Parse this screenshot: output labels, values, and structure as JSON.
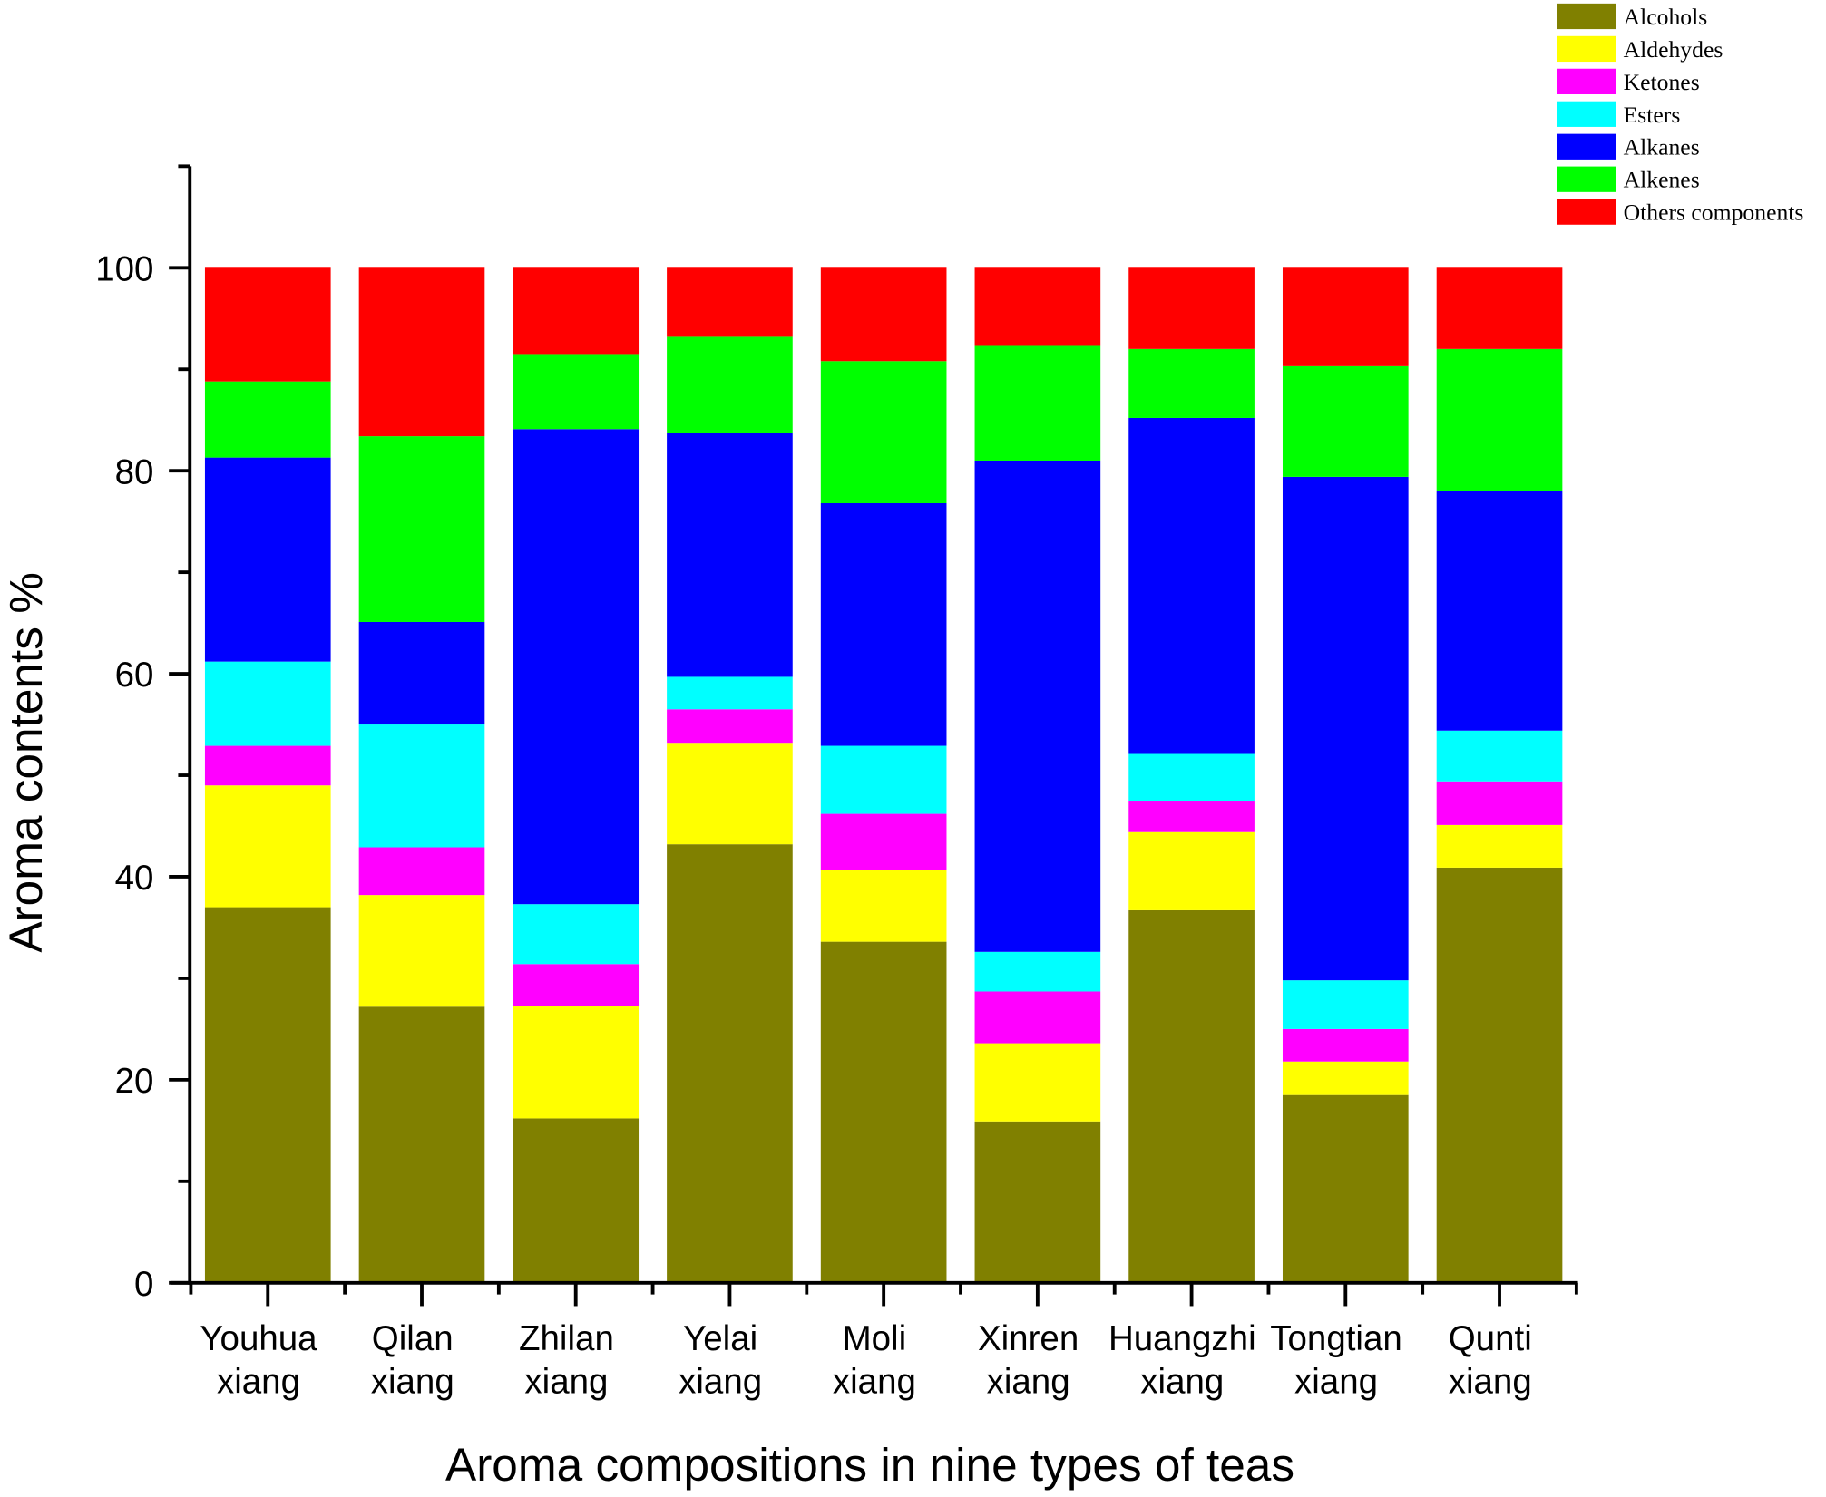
{
  "chart_data": {
    "type": "bar",
    "stacked": true,
    "title": "",
    "xlabel": "Aroma compositions in nine types of teas",
    "ylabel": "Aroma contents %",
    "ylim": [
      0,
      110
    ],
    "yticks": [
      0,
      20,
      40,
      60,
      80,
      100
    ],
    "grid": false,
    "legend_position": "top-right",
    "categories": [
      [
        "Youhua",
        "xiang"
      ],
      [
        "Qilan",
        "xiang"
      ],
      [
        "Zhilan",
        "xiang"
      ],
      [
        "Yelai",
        "xiang"
      ],
      [
        "Moli",
        "xiang"
      ],
      [
        "Xinren",
        "xiang"
      ],
      [
        "Huangzhi",
        "xiang"
      ],
      [
        "Tongtian",
        "xiang"
      ],
      [
        "Qunti",
        "xiang"
      ]
    ],
    "series": [
      {
        "name": "Alcohols",
        "color": "#808000",
        "values": [
          37.0,
          27.2,
          16.2,
          43.2,
          33.6,
          15.9,
          36.7,
          18.5,
          40.9
        ]
      },
      {
        "name": "Aldehydes",
        "color": "#ffff00",
        "values": [
          12.0,
          11.0,
          11.1,
          10.0,
          7.1,
          7.7,
          7.7,
          3.3,
          4.2
        ]
      },
      {
        "name": "Ketones",
        "color": "#ff00ff",
        "values": [
          3.9,
          4.7,
          4.1,
          3.3,
          5.5,
          5.1,
          3.1,
          3.2,
          4.3
        ]
      },
      {
        "name": "Esters",
        "color": "#00ffff",
        "values": [
          8.3,
          12.1,
          5.9,
          3.2,
          6.7,
          3.9,
          4.6,
          4.8,
          5.0
        ]
      },
      {
        "name": "Alkanes",
        "color": "#0000ff",
        "values": [
          20.1,
          10.1,
          46.8,
          24.0,
          23.9,
          48.4,
          33.1,
          49.6,
          23.6
        ]
      },
      {
        "name": "Alkenes",
        "color": "#00ff00",
        "values": [
          7.5,
          18.3,
          7.4,
          9.5,
          14.0,
          11.3,
          6.8,
          10.9,
          14.0
        ]
      },
      {
        "name": "Others components",
        "color": "#ff0000",
        "values": [
          11.2,
          16.6,
          8.5,
          6.8,
          9.2,
          7.7,
          8.0,
          9.7,
          8.0
        ]
      }
    ]
  }
}
